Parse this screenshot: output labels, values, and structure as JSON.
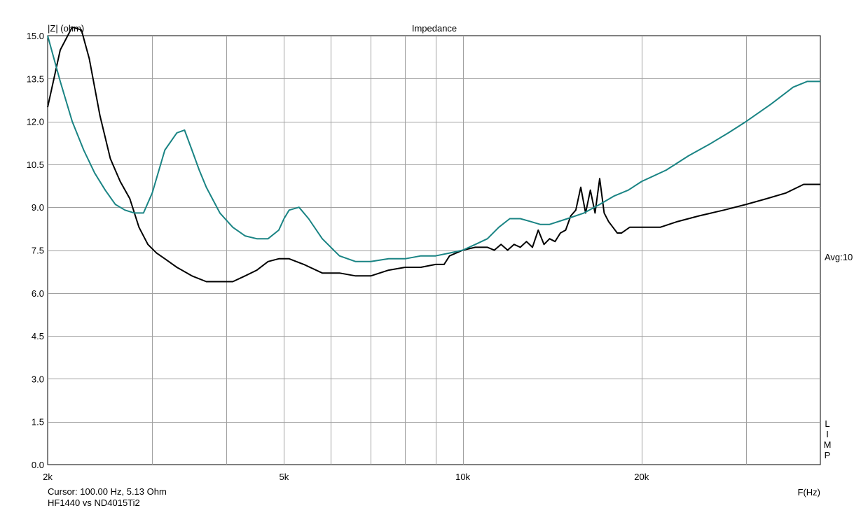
{
  "chart_data": {
    "type": "line",
    "title": "Impedance",
    "ylabel": "|Z| (ohm)",
    "xlabel": "F(Hz)",
    "xscale": "log",
    "xlim": [
      2000,
      40000
    ],
    "ylim": [
      0,
      15
    ],
    "grid": true,
    "y_ticks": [
      "0.0",
      "1.5",
      "3.0",
      "4.5",
      "6.0",
      "7.5",
      "9.0",
      "10.5",
      "12.0",
      "13.5",
      "15.0"
    ],
    "x_tick_labels": [
      {
        "value": 2000,
        "label": "2k"
      },
      {
        "value": 5000,
        "label": "5k"
      },
      {
        "value": 10000,
        "label": "10k"
      },
      {
        "value": 20000,
        "label": "20k"
      }
    ],
    "right_annotations": {
      "avg": "Avg:10",
      "limp": "LIMP"
    },
    "series": [
      {
        "color": "#000000",
        "x": [
          2000,
          2100,
          2200,
          2280,
          2350,
          2450,
          2550,
          2650,
          2750,
          2850,
          2950,
          3050,
          3150,
          3300,
          3500,
          3700,
          3900,
          4100,
          4300,
          4500,
          4700,
          4900,
          5100,
          5400,
          5800,
          6200,
          6600,
          7000,
          7500,
          8000,
          8500,
          9000,
          9300,
          9500,
          10000,
          10500,
          10800,
          11000,
          11300,
          11600,
          11900,
          12200,
          12500,
          12800,
          13100,
          13400,
          13700,
          14000,
          14300,
          14600,
          14900,
          15200,
          15500,
          15800,
          16100,
          16400,
          16700,
          17000,
          17300,
          17600,
          17900,
          18200,
          18500,
          18800,
          19100,
          19400,
          19700,
          20000,
          20500,
          21500,
          23000,
          25000,
          27500,
          30000,
          32500,
          35000,
          37500,
          40000
        ],
        "values": [
          12.5,
          14.5,
          15.3,
          15.2,
          14.2,
          12.2,
          10.7,
          9.9,
          9.3,
          8.3,
          7.7,
          7.4,
          7.2,
          6.9,
          6.6,
          6.4,
          6.4,
          6.4,
          6.6,
          6.8,
          7.1,
          7.2,
          7.2,
          7.0,
          6.7,
          6.7,
          6.6,
          6.6,
          6.8,
          6.9,
          6.9,
          7.0,
          7.0,
          7.3,
          7.5,
          7.6,
          7.6,
          7.6,
          7.5,
          7.7,
          7.5,
          7.7,
          7.6,
          7.8,
          7.6,
          8.2,
          7.7,
          7.9,
          7.8,
          8.1,
          8.2,
          8.7,
          8.9,
          9.7,
          8.8,
          9.6,
          8.8,
          10.0,
          8.8,
          8.5,
          8.3,
          8.1,
          8.1,
          8.2,
          8.3,
          8.3,
          8.3,
          8.3,
          8.3,
          8.3,
          8.5,
          8.7,
          8.9,
          9.1,
          9.3,
          9.5,
          9.8,
          9.8
        ]
      },
      {
        "color": "#1a8484",
        "x": [
          2000,
          2100,
          2200,
          2300,
          2400,
          2500,
          2600,
          2700,
          2800,
          2900,
          3000,
          3150,
          3300,
          3400,
          3500,
          3600,
          3700,
          3900,
          4100,
          4300,
          4500,
          4700,
          4900,
          5000,
          5100,
          5300,
          5500,
          5800,
          6200,
          6600,
          7000,
          7500,
          8000,
          8500,
          9000,
          9500,
          10000,
          10500,
          11000,
          11500,
          12000,
          12500,
          13000,
          13500,
          14000,
          15000,
          16000,
          17000,
          18000,
          19000,
          20000,
          22000,
          24000,
          26000,
          28000,
          30000,
          33000,
          36000,
          38000,
          40000
        ],
        "values": [
          15.0,
          13.4,
          12.0,
          11.0,
          10.2,
          9.6,
          9.1,
          8.9,
          8.8,
          8.8,
          9.5,
          11.0,
          11.6,
          11.7,
          11.0,
          10.3,
          9.7,
          8.8,
          8.3,
          8.0,
          7.9,
          7.9,
          8.2,
          8.6,
          8.9,
          9.0,
          8.6,
          7.9,
          7.3,
          7.1,
          7.1,
          7.2,
          7.2,
          7.3,
          7.3,
          7.4,
          7.5,
          7.7,
          7.9,
          8.3,
          8.6,
          8.6,
          8.5,
          8.4,
          8.4,
          8.6,
          8.8,
          9.1,
          9.4,
          9.6,
          9.9,
          10.3,
          10.8,
          11.2,
          11.6,
          12.0,
          12.6,
          13.2,
          13.4,
          13.4
        ]
      }
    ]
  },
  "footer": {
    "cursor": "Cursor: 100.00 Hz, 5.13 Ohm",
    "caption": "HF1440 vs ND4015Ti2"
  }
}
